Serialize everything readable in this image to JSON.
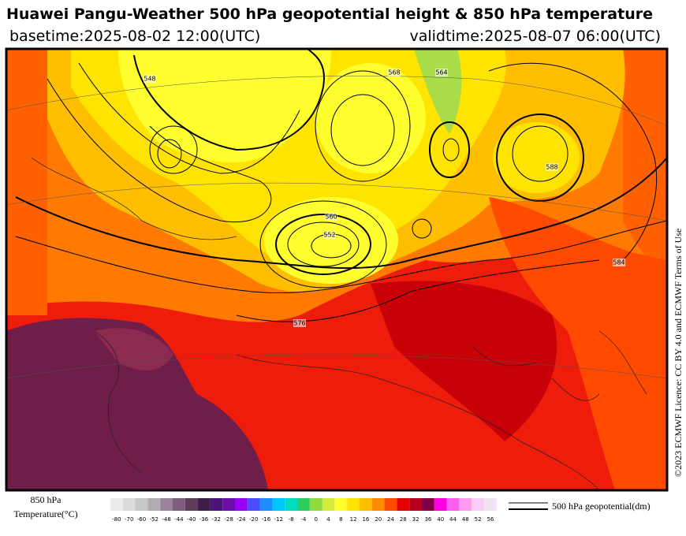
{
  "header": {
    "title": "Huawei Pangu-Weather 500 hPa geopotential height & 850 hPa temperature",
    "basetime": "basetime:2025-08-02 12:00(UTC)",
    "validtime": "validtime:2025-08-07 06:00(UTC)"
  },
  "map": {
    "contour_labels": [
      "552",
      "560",
      "584",
      "576",
      "564",
      "548",
      "568",
      "588"
    ],
    "copyright": "©2023 ECMWF Licence: CC BY 4.0 and ECMWF Terms of Use"
  },
  "legend": {
    "temperature_title": [
      "850 hPa",
      "Temperature(°C)"
    ],
    "colorbar": [
      {
        "label": "-80",
        "color": "#ececec"
      },
      {
        "label": "-70",
        "color": "#dcdcdc"
      },
      {
        "label": "-60",
        "color": "#c8c8c8"
      },
      {
        "label": "-52",
        "color": "#b4aab4"
      },
      {
        "label": "-48",
        "color": "#9a829a"
      },
      {
        "label": "-44",
        "color": "#7e5e7e"
      },
      {
        "label": "-40",
        "color": "#5e3c5e"
      },
      {
        "label": "-36",
        "color": "#3c1e46"
      },
      {
        "label": "-32",
        "color": "#4a1478"
      },
      {
        "label": "-28",
        "color": "#6a10a8"
      },
      {
        "label": "-24",
        "color": "#9a00f0"
      },
      {
        "label": "-20",
        "color": "#4c4cff"
      },
      {
        "label": "-16",
        "color": "#1e8cff"
      },
      {
        "label": "-12",
        "color": "#00c4ff"
      },
      {
        "label": "-8",
        "color": "#00dcc0"
      },
      {
        "label": "-4",
        "color": "#30cc60"
      },
      {
        "label": "0",
        "color": "#8cdc3c"
      },
      {
        "label": "4",
        "color": "#d4ec40"
      },
      {
        "label": "8",
        "color": "#ffff30"
      },
      {
        "label": "12",
        "color": "#ffe400"
      },
      {
        "label": "16",
        "color": "#ffbe00"
      },
      {
        "label": "20",
        "color": "#ff8c00"
      },
      {
        "label": "24",
        "color": "#ff4a00"
      },
      {
        "label": "28",
        "color": "#e60000"
      },
      {
        "label": "32",
        "color": "#b4001e"
      },
      {
        "label": "36",
        "color": "#820046"
      },
      {
        "label": "40",
        "color": "#ff00e6"
      },
      {
        "label": "44",
        "color": "#ff5cf0"
      },
      {
        "label": "48",
        "color": "#ff9cf4"
      },
      {
        "label": "52",
        "color": "#ffccf8"
      },
      {
        "label": "56",
        "color": "#f0e4f0"
      }
    ],
    "contour_label": "500 hPa geopotential(dm)"
  }
}
